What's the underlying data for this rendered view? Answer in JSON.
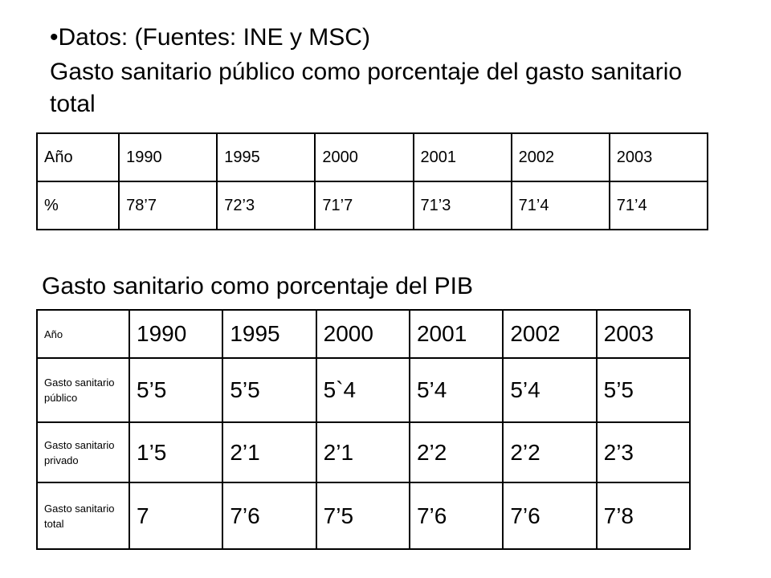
{
  "header": {
    "source": "•Datos: (Fuentes: INE y MSC)",
    "title": "Gasto sanitario público como porcentaje del gasto sanitario total"
  },
  "table1": {
    "rows": [
      [
        "Año",
        "1990",
        "1995",
        "2000",
        "2001",
        "2002",
        "2003"
      ],
      [
        "%",
        "78’7",
        "72’3",
        "71’7",
        "71’3",
        "71’4",
        "71’4"
      ]
    ]
  },
  "title2": "Gasto sanitario como porcentaje del PIB",
  "table2": {
    "rows": [
      [
        "Año",
        "1990",
        "1995",
        "2000",
        "2001",
        "2002",
        "2003"
      ],
      [
        "Gasto sanitario público",
        "5’5",
        "5’5",
        "5`4",
        "5’4",
        "5’4",
        "5’5"
      ],
      [
        "Gasto sanitario privado",
        "1’5",
        "2’1",
        "2’1",
        "2’2",
        "2’2",
        "2’3"
      ],
      [
        "Gasto sanitario total",
        "7",
        "7’6",
        "7’5",
        "7’6",
        "7’6",
        "7’8"
      ]
    ]
  }
}
